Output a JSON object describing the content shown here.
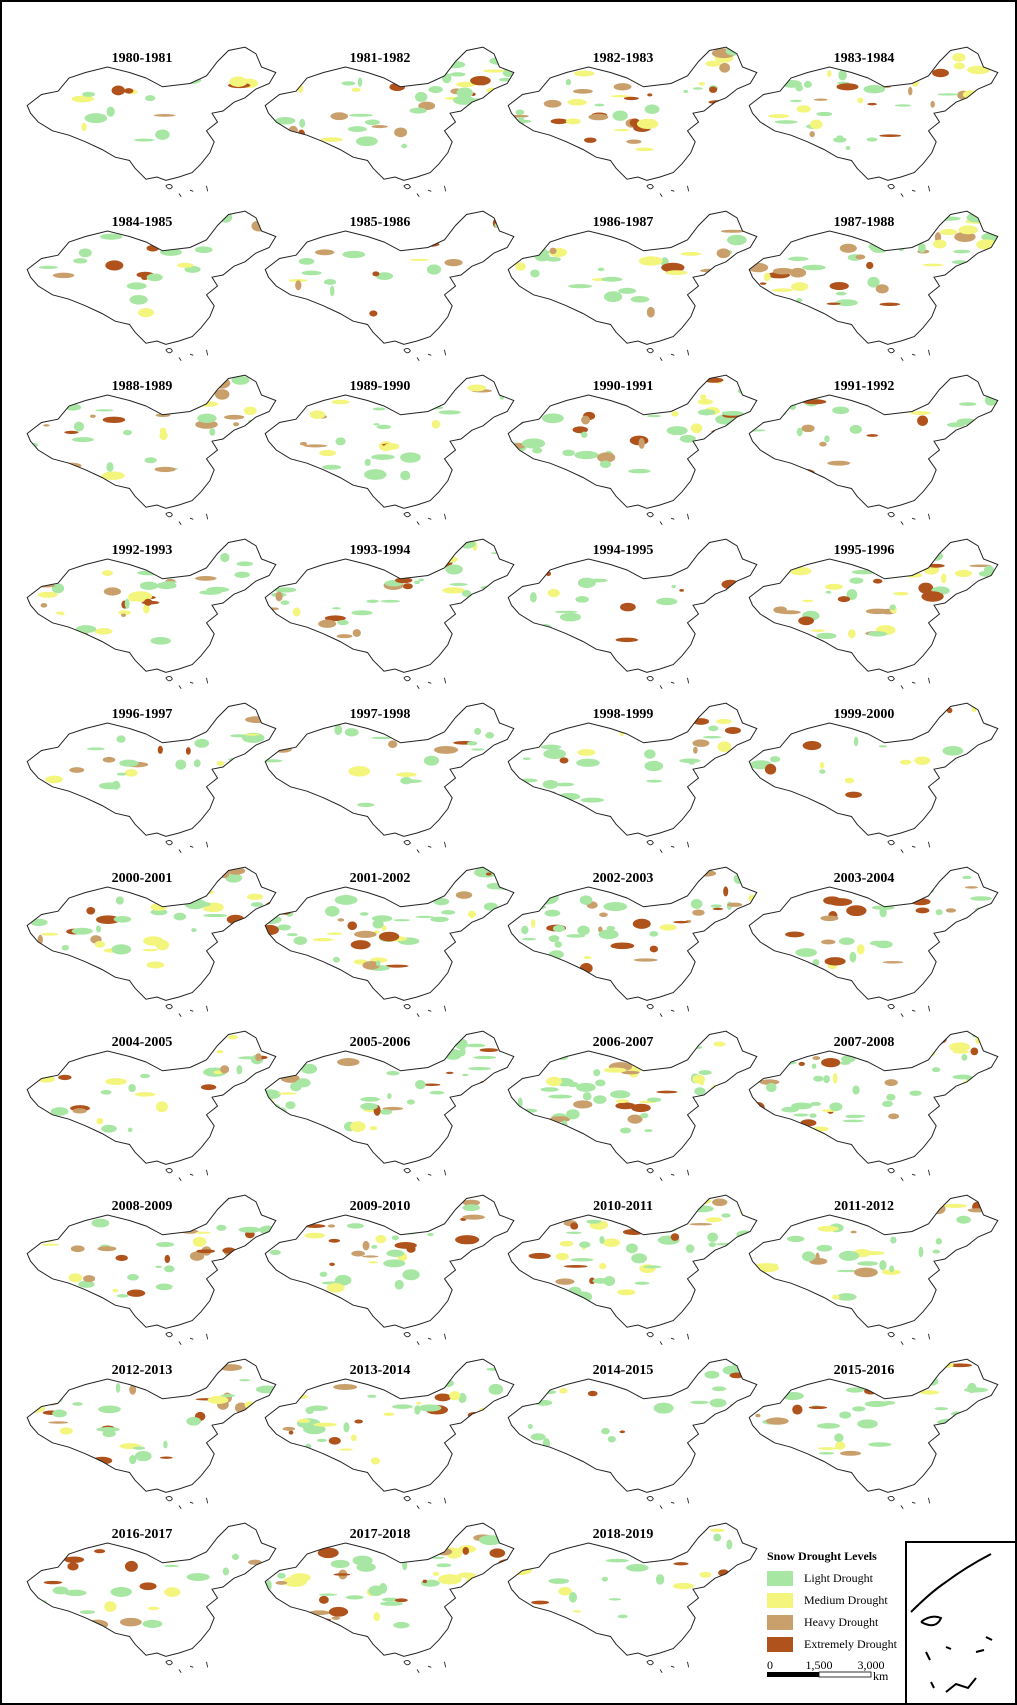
{
  "panels": [
    "1980-1981",
    "1981-1982",
    "1982-1983",
    "1983-1984",
    "1984-1985",
    "1985-1986",
    "1986-1987",
    "1987-1988",
    "1988-1989",
    "1989-1990",
    "1990-1991",
    "1991-1992",
    "1992-1993",
    "1993-1994",
    "1994-1995",
    "1995-1996",
    "1996-1997",
    "1997-1998",
    "1998-1999",
    "1999-2000",
    "2000-2001",
    "2001-2002",
    "2002-2003",
    "2003-2004",
    "2004-2005",
    "2005-2006",
    "2006-2007",
    "2007-2008",
    "2008-2009",
    "2009-2010",
    "2010-2011",
    "2011-2012",
    "2012-2013",
    "2013-2014",
    "2014-2015",
    "2015-2016",
    "2016-2017",
    "2017-2018",
    "2018-2019"
  ],
  "legend": {
    "title": "Snow Drought Levels",
    "items": [
      {
        "label": "Light Drought",
        "color": "#a8e6a4"
      },
      {
        "label": "Medium Drought",
        "color": "#f4f57c"
      },
      {
        "label": "Heavy Drought",
        "color": "#c9a06c"
      },
      {
        "label": "Extremely Drought",
        "color": "#b0521c"
      }
    ]
  },
  "scale_bar": {
    "labels": [
      "0",
      "1,500",
      "3,000"
    ],
    "unit": "km"
  }
}
